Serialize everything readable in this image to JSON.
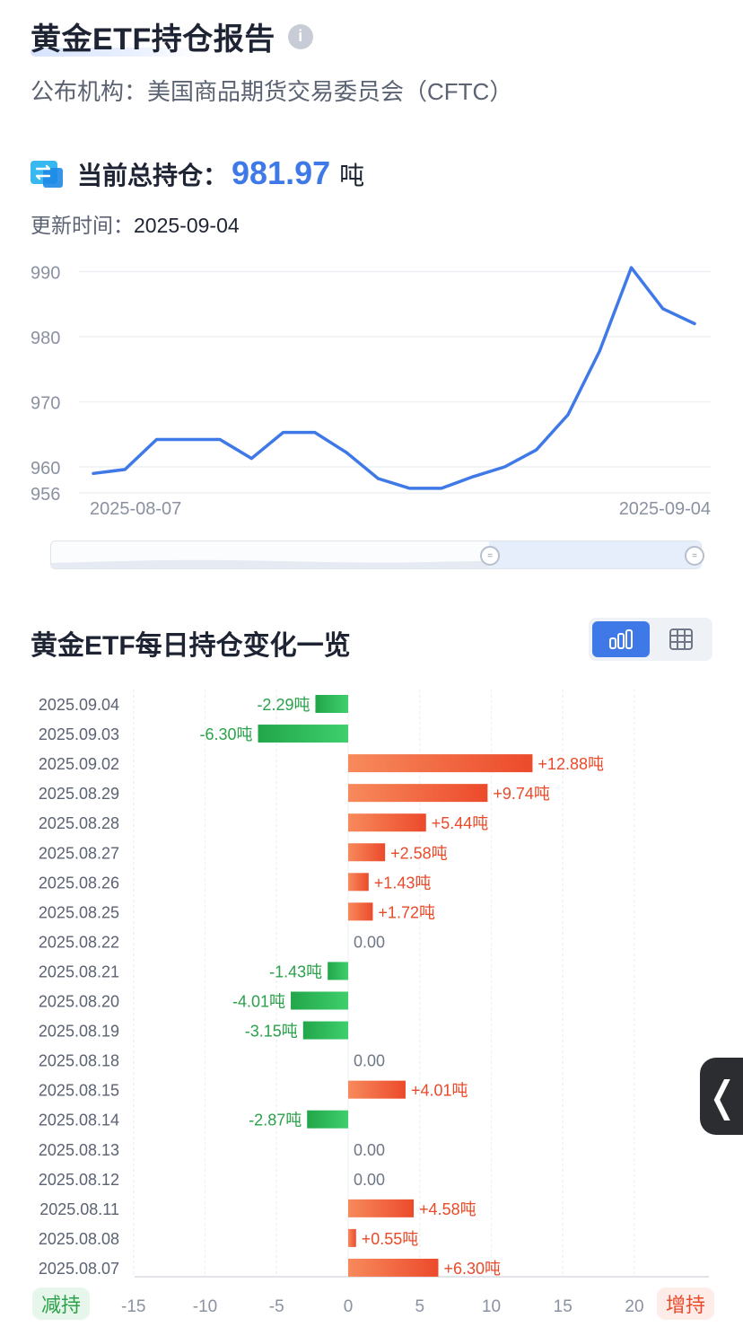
{
  "header": {
    "title": "黄金ETF持仓报告",
    "publisher_label": "公布机构：",
    "publisher_value": "美国商品期货交易委员会（CFTC）"
  },
  "summary": {
    "holding_label": "当前总持仓：",
    "holding_value": "981.97",
    "holding_unit": "吨",
    "update_label": "更新时间：",
    "update_value": "2025-09-04"
  },
  "section": {
    "title": "黄金ETF每日持仓变化一览",
    "decrease_tag": "减持",
    "increase_tag": "增持"
  },
  "colors": {
    "accent": "#3f79e8",
    "increase": "#ea4a2a",
    "decrease": "#2aa14a"
  },
  "chart_data": [
    {
      "type": "line",
      "x_labels": [
        "2025-08-07",
        "2025-09-04"
      ],
      "dates": [
        "2025-08-07",
        "2025-08-08",
        "2025-08-11",
        "2025-08-12",
        "2025-08-13",
        "2025-08-14",
        "2025-08-15",
        "2025-08-18",
        "2025-08-19",
        "2025-08-20",
        "2025-08-21",
        "2025-08-22",
        "2025-08-25",
        "2025-08-26",
        "2025-08-27",
        "2025-08-28",
        "2025-08-29",
        "2025-09-02",
        "2025-09-03",
        "2025-09-04"
      ],
      "values": [
        959.0,
        959.6,
        964.2,
        964.2,
        964.2,
        961.3,
        965.3,
        965.3,
        962.2,
        958.2,
        956.7,
        956.7,
        958.5,
        960.0,
        962.6,
        968.0,
        977.8,
        990.6,
        984.3,
        982.0
      ],
      "y_ticks": [
        956,
        960,
        970,
        980,
        990
      ],
      "ylim": [
        956,
        992
      ],
      "grid": true
    },
    {
      "type": "bar",
      "orientation": "horizontal",
      "categories": [
        "2025.09.04",
        "2025.09.03",
        "2025.09.02",
        "2025.08.29",
        "2025.08.28",
        "2025.08.27",
        "2025.08.26",
        "2025.08.25",
        "2025.08.22",
        "2025.08.21",
        "2025.08.20",
        "2025.08.19",
        "2025.08.18",
        "2025.08.15",
        "2025.08.14",
        "2025.08.13",
        "2025.08.12",
        "2025.08.11",
        "2025.08.08",
        "2025.08.07"
      ],
      "values": [
        -2.29,
        -6.3,
        12.88,
        9.74,
        5.44,
        2.58,
        1.43,
        1.72,
        0,
        -1.43,
        -4.01,
        -3.15,
        0,
        4.01,
        -2.87,
        0,
        0,
        4.58,
        0.55,
        6.3
      ],
      "labels": [
        "-2.29吨",
        "-6.30吨",
        "+12.88吨",
        "+9.74吨",
        "+5.44吨",
        "+2.58吨",
        "+1.43吨",
        "+1.72吨",
        "0.00",
        "-1.43吨",
        "-4.01吨",
        "-3.15吨",
        "0.00",
        "+4.01吨",
        "-2.87吨",
        "0.00",
        "0.00",
        "+4.58吨",
        "+0.55吨",
        "+6.30吨"
      ],
      "x_ticks": [
        -15,
        -10,
        -5,
        0,
        5,
        10,
        15,
        20
      ],
      "x_tick_labels": [
        "-15",
        "-10",
        "-5",
        "0",
        "5",
        "10",
        "15",
        "20"
      ],
      "xlim": [
        -15.5,
        25
      ],
      "grid": true
    }
  ]
}
